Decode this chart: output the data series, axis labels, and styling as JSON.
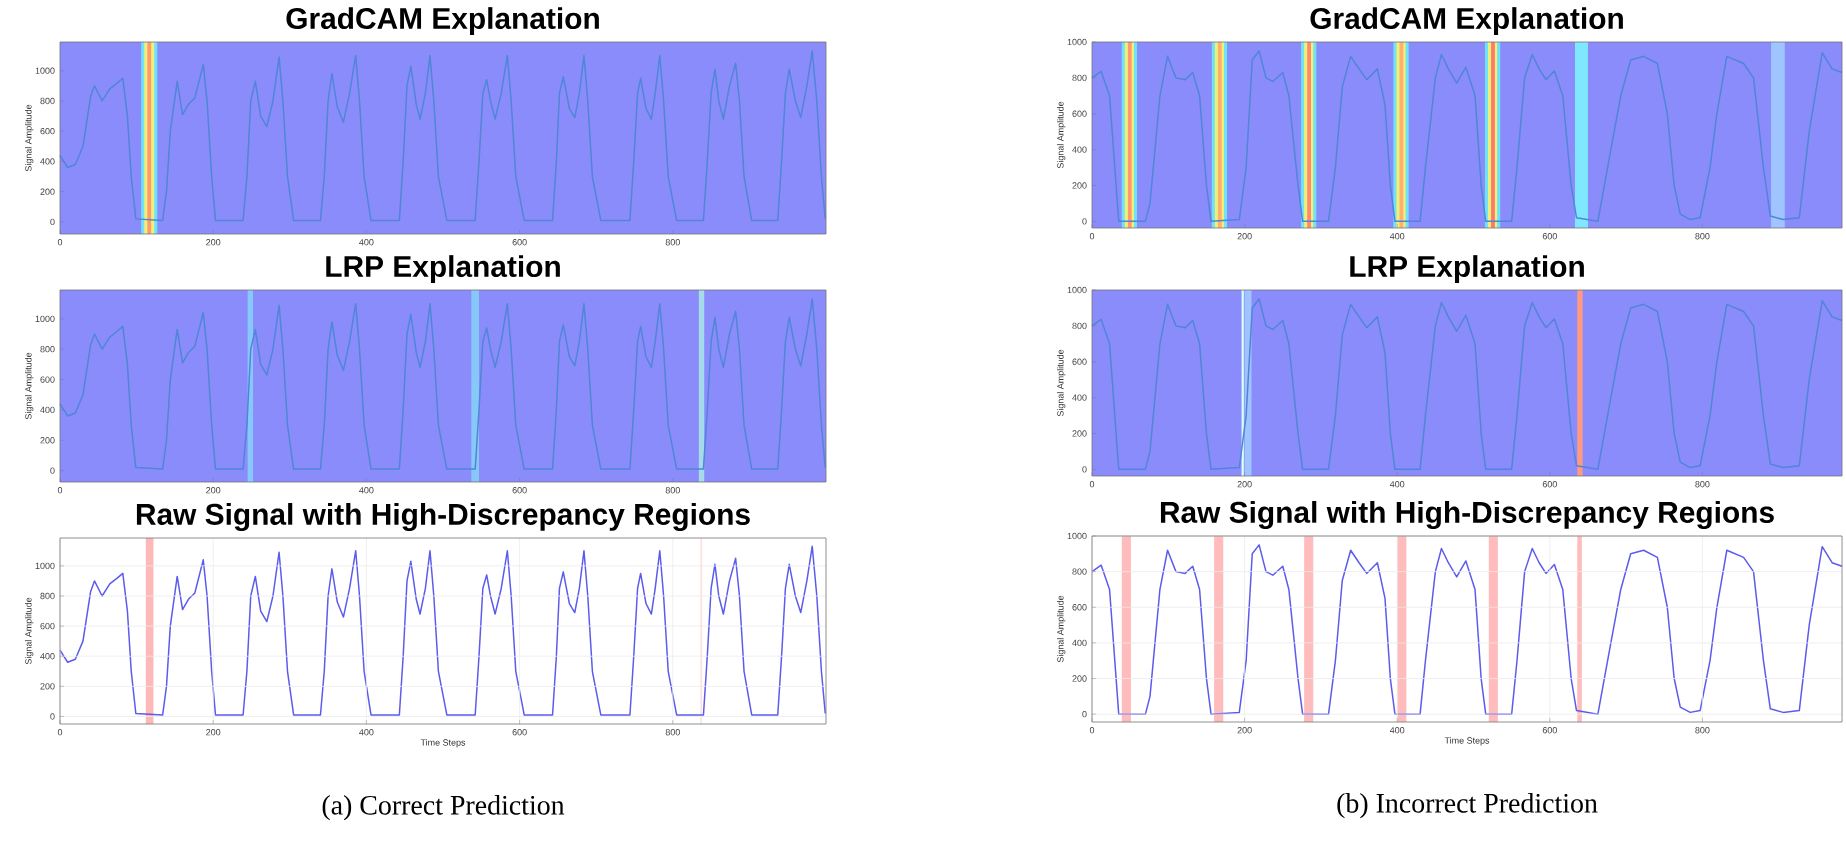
{
  "chart_data": [
    {
      "type": "line",
      "title": "GradCAM Explanation",
      "ylabel": "Signal Amplitude",
      "xlim": [
        0,
        1000
      ],
      "ylim": [
        -80,
        1190
      ],
      "xticks": [
        0,
        200,
        400,
        600,
        800
      ],
      "yticks": [
        0,
        200,
        400,
        600,
        800,
        1000
      ],
      "bands": [
        {
          "axis": "x",
          "from": 0,
          "to": 1000,
          "color": "#8b8cfc"
        },
        {
          "axis": "x",
          "from": 106,
          "to": 127,
          "color": "#6fe3f5"
        },
        {
          "axis": "x",
          "from": 110,
          "to": 123,
          "color": "#eef07a"
        },
        {
          "axis": "x",
          "from": 114,
          "to": 119,
          "color": "#ff9a70"
        }
      ],
      "x": [
        0,
        10,
        20,
        30,
        40,
        45,
        55,
        65,
        75,
        82,
        88,
        93,
        99,
        134,
        139,
        144,
        153,
        160,
        168,
        176,
        187,
        192,
        198,
        203,
        239,
        244,
        249,
        255,
        262,
        270,
        278,
        286,
        291,
        297,
        305,
        340,
        345,
        350,
        355,
        362,
        370,
        378,
        386,
        391,
        397,
        406,
        443,
        448,
        453,
        458,
        465,
        470,
        477,
        483,
        488,
        494,
        505,
        542,
        547,
        552,
        557,
        562,
        568,
        576,
        584,
        589,
        595,
        606,
        643,
        648,
        652,
        657,
        665,
        672,
        678,
        684,
        689,
        695,
        706,
        744,
        749,
        754,
        758,
        765,
        772,
        777,
        783,
        788,
        794,
        805,
        840,
        845,
        850,
        855,
        860,
        866,
        874,
        882,
        887,
        893,
        903,
        937,
        942,
        947,
        952,
        960,
        967,
        975,
        982,
        988,
        994,
        999
      ],
      "series": [
        {
          "color": "#4f86d6",
          "values": [
            440,
            360,
            380,
            500,
            830,
            900,
            800,
            880,
            920,
            950,
            700,
            300,
            20,
            10,
            200,
            600,
            930,
            710,
            780,
            820,
            1040,
            800,
            300,
            10,
            10,
            300,
            800,
            930,
            700,
            630,
            800,
            1090,
            800,
            300,
            10,
            10,
            300,
            800,
            980,
            760,
            660,
            850,
            1100,
            800,
            300,
            10,
            10,
            400,
            900,
            1030,
            780,
            680,
            850,
            1100,
            800,
            300,
            10,
            10,
            400,
            850,
            940,
            800,
            680,
            850,
            1100,
            800,
            300,
            10,
            10,
            400,
            850,
            960,
            750,
            690,
            850,
            1100,
            800,
            300,
            10,
            10,
            400,
            850,
            950,
            750,
            680,
            850,
            1100,
            800,
            300,
            10,
            10,
            400,
            850,
            1010,
            800,
            680,
            900,
            1050,
            800,
            300,
            10,
            10,
            400,
            850,
            1010,
            800,
            690,
            900,
            1130,
            800,
            300,
            20
          ]
        }
      ]
    },
    {
      "type": "line",
      "title": "LRP Explanation",
      "ylabel": "Signal Amplitude",
      "xlim": [
        0,
        1000
      ],
      "ylim": [
        -75,
        1190
      ],
      "xticks": [
        0,
        200,
        400,
        600,
        800
      ],
      "yticks": [
        0,
        200,
        400,
        600,
        800,
        1000
      ],
      "bands": [
        {
          "axis": "x",
          "from": 0,
          "to": 1000,
          "color": "#8b8cfc"
        },
        {
          "axis": "x",
          "from": 245,
          "to": 252,
          "color": "#86c8f8"
        },
        {
          "axis": "x",
          "from": 537,
          "to": 547,
          "color": "#86c8f8"
        },
        {
          "axis": "x",
          "from": 834,
          "to": 841,
          "color": "#a6dcea"
        }
      ],
      "x": [
        0,
        10,
        20,
        30,
        40,
        45,
        55,
        65,
        75,
        82,
        88,
        93,
        99,
        134,
        139,
        144,
        153,
        160,
        168,
        176,
        187,
        192,
        198,
        203,
        239,
        244,
        249,
        255,
        262,
        270,
        278,
        286,
        291,
        297,
        305,
        340,
        345,
        350,
        355,
        362,
        370,
        378,
        386,
        391,
        397,
        406,
        443,
        448,
        453,
        458,
        465,
        470,
        477,
        483,
        488,
        494,
        505,
        542,
        547,
        552,
        557,
        562,
        568,
        576,
        584,
        589,
        595,
        606,
        643,
        648,
        652,
        657,
        665,
        672,
        678,
        684,
        689,
        695,
        706,
        744,
        749,
        754,
        758,
        765,
        772,
        777,
        783,
        788,
        794,
        805,
        840,
        845,
        850,
        855,
        860,
        866,
        874,
        882,
        887,
        893,
        903,
        937,
        942,
        947,
        952,
        960,
        967,
        975,
        982,
        988,
        994,
        999
      ],
      "series": [
        {
          "color": "#4f86d6",
          "values": [
            440,
            360,
            380,
            500,
            830,
            900,
            800,
            880,
            920,
            950,
            700,
            300,
            20,
            10,
            200,
            600,
            930,
            710,
            780,
            820,
            1040,
            800,
            300,
            10,
            10,
            300,
            800,
            930,
            700,
            630,
            800,
            1090,
            800,
            300,
            10,
            10,
            300,
            800,
            980,
            760,
            660,
            850,
            1100,
            800,
            300,
            10,
            10,
            400,
            900,
            1030,
            780,
            680,
            850,
            1100,
            800,
            300,
            10,
            10,
            400,
            850,
            940,
            800,
            680,
            850,
            1100,
            800,
            300,
            10,
            10,
            400,
            850,
            960,
            750,
            690,
            850,
            1100,
            800,
            300,
            10,
            10,
            400,
            850,
            950,
            750,
            680,
            850,
            1100,
            800,
            300,
            10,
            10,
            400,
            850,
            1010,
            800,
            680,
            900,
            1050,
            800,
            300,
            10,
            10,
            400,
            850,
            1010,
            800,
            690,
            900,
            1130,
            800,
            300,
            20
          ]
        }
      ]
    },
    {
      "type": "line",
      "title": "Raw Signal with High-Discrepancy Regions",
      "ylabel": "Signal Amplitude",
      "xlabel": "Time Steps",
      "xlim": [
        0,
        1000
      ],
      "ylim": [
        -50,
        1185
      ],
      "xticks": [
        0,
        200,
        400,
        600,
        800
      ],
      "yticks": [
        0,
        200,
        400,
        600,
        800,
        1000
      ],
      "grid": true,
      "annotations": [
        "(a) Correct Prediction"
      ],
      "bands": [
        {
          "axis": "x",
          "from": 112,
          "to": 122,
          "color": "#ffb8b8"
        },
        {
          "axis": "x",
          "from": 836,
          "to": 838,
          "color": "#ffdede"
        }
      ],
      "x": [
        0,
        10,
        20,
        30,
        40,
        45,
        55,
        65,
        75,
        82,
        88,
        93,
        99,
        134,
        139,
        144,
        153,
        160,
        168,
        176,
        187,
        192,
        198,
        203,
        239,
        244,
        249,
        255,
        262,
        270,
        278,
        286,
        291,
        297,
        305,
        340,
        345,
        350,
        355,
        362,
        370,
        378,
        386,
        391,
        397,
        406,
        443,
        448,
        453,
        458,
        465,
        470,
        477,
        483,
        488,
        494,
        505,
        542,
        547,
        552,
        557,
        562,
        568,
        576,
        584,
        589,
        595,
        606,
        643,
        648,
        652,
        657,
        665,
        672,
        678,
        684,
        689,
        695,
        706,
        744,
        749,
        754,
        758,
        765,
        772,
        777,
        783,
        788,
        794,
        805,
        840,
        845,
        850,
        855,
        860,
        866,
        874,
        882,
        887,
        893,
        903,
        937,
        942,
        947,
        952,
        960,
        967,
        975,
        982,
        988,
        994,
        999
      ],
      "series": [
        {
          "color": "#5b5bee",
          "values": [
            440,
            360,
            380,
            500,
            830,
            900,
            800,
            880,
            920,
            950,
            700,
            300,
            20,
            10,
            200,
            600,
            930,
            710,
            780,
            820,
            1040,
            800,
            300,
            10,
            10,
            300,
            800,
            930,
            700,
            630,
            800,
            1090,
            800,
            300,
            10,
            10,
            300,
            800,
            980,
            760,
            660,
            850,
            1100,
            800,
            300,
            10,
            10,
            400,
            900,
            1030,
            780,
            680,
            850,
            1100,
            800,
            300,
            10,
            10,
            400,
            850,
            940,
            800,
            680,
            850,
            1100,
            800,
            300,
            10,
            10,
            400,
            850,
            960,
            750,
            690,
            850,
            1100,
            800,
            300,
            10,
            10,
            400,
            850,
            950,
            750,
            680,
            850,
            1100,
            800,
            300,
            10,
            10,
            400,
            850,
            1010,
            800,
            680,
            900,
            1050,
            800,
            300,
            10,
            10,
            400,
            850,
            1010,
            800,
            690,
            900,
            1130,
            800,
            300,
            20
          ]
        }
      ]
    },
    {
      "type": "line",
      "title": "GradCAM Explanation",
      "ylabel": "Signal Amplitude",
      "xlim": [
        0,
        983
      ],
      "ylim": [
        -37,
        1000
      ],
      "xticks": [
        0,
        200,
        400,
        600,
        800
      ],
      "yticks": [
        0,
        200,
        400,
        600,
        800,
        1000
      ],
      "bands": [
        {
          "axis": "x",
          "from": 0,
          "to": 983,
          "color": "#8b8cfc"
        },
        {
          "axis": "x",
          "from": 39,
          "to": 59,
          "color": "#6fe3f5"
        },
        {
          "axis": "x",
          "from": 43,
          "to": 55,
          "color": "#eef07a"
        },
        {
          "axis": "x",
          "from": 47,
          "to": 52,
          "color": "#ff9a70"
        },
        {
          "axis": "x",
          "from": 157,
          "to": 177,
          "color": "#6fe3f5"
        },
        {
          "axis": "x",
          "from": 161,
          "to": 173,
          "color": "#eef07a"
        },
        {
          "axis": "x",
          "from": 165,
          "to": 170,
          "color": "#ffb070"
        },
        {
          "axis": "x",
          "from": 274,
          "to": 294,
          "color": "#6fe3f5"
        },
        {
          "axis": "x",
          "from": 278,
          "to": 290,
          "color": "#eef07a"
        },
        {
          "axis": "x",
          "from": 282,
          "to": 287,
          "color": "#ff8a70"
        },
        {
          "axis": "x",
          "from": 395,
          "to": 415,
          "color": "#6fe3f5"
        },
        {
          "axis": "x",
          "from": 399,
          "to": 411,
          "color": "#eef07a"
        },
        {
          "axis": "x",
          "from": 403,
          "to": 408,
          "color": "#ffb070"
        },
        {
          "axis": "x",
          "from": 515,
          "to": 535,
          "color": "#6fe3f5"
        },
        {
          "axis": "x",
          "from": 519,
          "to": 531,
          "color": "#eef07a"
        },
        {
          "axis": "x",
          "from": 523,
          "to": 528,
          "color": "#ff7a6a"
        },
        {
          "axis": "x",
          "from": 633,
          "to": 650,
          "color": "#7fe8ff"
        },
        {
          "axis": "x",
          "from": 890,
          "to": 908,
          "color": "#a0c4ff"
        }
      ],
      "x": [
        0,
        12,
        23,
        35,
        70,
        76,
        89,
        99,
        110,
        122,
        132,
        141,
        150,
        156,
        193,
        202,
        210,
        219,
        228,
        237,
        250,
        258,
        270,
        276,
        310,
        319,
        328,
        339,
        350,
        360,
        374,
        384,
        391,
        397,
        430,
        437,
        450,
        458,
        467,
        478,
        490,
        502,
        510,
        516,
        550,
        557,
        567,
        577,
        586,
        595,
        606,
        617,
        628,
        635,
        663,
        680,
        693,
        706,
        723,
        741,
        754,
        763,
        771,
        784,
        797,
        810,
        819,
        832,
        854,
        867,
        880,
        889,
        906,
        927,
        940,
        957,
        970,
        983
      ],
      "series": [
        {
          "color": "#4f86d6",
          "values": [
            800,
            836,
            700,
            0,
            0,
            100,
            700,
            920,
            800,
            790,
            830,
            700,
            200,
            0,
            10,
            300,
            900,
            950,
            800,
            780,
            830,
            700,
            200,
            0,
            0,
            300,
            750,
            920,
            850,
            790,
            850,
            650,
            200,
            0,
            0,
            300,
            800,
            930,
            850,
            770,
            860,
            700,
            200,
            0,
            0,
            300,
            800,
            930,
            850,
            790,
            840,
            700,
            200,
            20,
            0,
            400,
            700,
            900,
            920,
            880,
            600,
            200,
            40,
            10,
            20,
            300,
            600,
            920,
            880,
            800,
            300,
            30,
            10,
            20,
            500,
            940,
            850,
            830
          ]
        }
      ]
    },
    {
      "type": "line",
      "title": "LRP Explanation",
      "ylabel": "Signal Amplitude",
      "xlim": [
        0,
        983
      ],
      "ylim": [
        -37,
        1000
      ],
      "xticks": [
        0,
        200,
        400,
        600,
        800
      ],
      "yticks": [
        0,
        200,
        400,
        600,
        800,
        1000
      ],
      "bands": [
        {
          "axis": "x",
          "from": 0,
          "to": 983,
          "color": "#8b8cfc"
        },
        {
          "axis": "x",
          "from": 196,
          "to": 199,
          "color": "#d8fff4"
        },
        {
          "axis": "x",
          "from": 200,
          "to": 209,
          "color": "#a0c4ff"
        },
        {
          "axis": "x",
          "from": 636,
          "to": 643,
          "color": "#ff9a80"
        }
      ],
      "x": [
        0,
        12,
        23,
        35,
        70,
        76,
        89,
        99,
        110,
        122,
        132,
        141,
        150,
        156,
        193,
        202,
        210,
        219,
        228,
        237,
        250,
        258,
        270,
        276,
        310,
        319,
        328,
        339,
        350,
        360,
        374,
        384,
        391,
        397,
        430,
        437,
        450,
        458,
        467,
        478,
        490,
        502,
        510,
        516,
        550,
        557,
        567,
        577,
        586,
        595,
        606,
        617,
        628,
        635,
        663,
        680,
        693,
        706,
        723,
        741,
        754,
        763,
        771,
        784,
        797,
        810,
        819,
        832,
        854,
        867,
        880,
        889,
        906,
        927,
        940,
        957,
        970,
        983
      ],
      "series": [
        {
          "color": "#4f86d6",
          "values": [
            800,
            836,
            700,
            0,
            0,
            100,
            700,
            920,
            800,
            790,
            830,
            700,
            200,
            0,
            10,
            300,
            900,
            950,
            800,
            780,
            830,
            700,
            200,
            0,
            0,
            300,
            750,
            920,
            850,
            790,
            850,
            650,
            200,
            0,
            0,
            300,
            800,
            930,
            850,
            770,
            860,
            700,
            200,
            0,
            0,
            300,
            800,
            930,
            850,
            790,
            840,
            700,
            200,
            20,
            0,
            400,
            700,
            900,
            920,
            880,
            600,
            200,
            40,
            10,
            20,
            300,
            600,
            920,
            880,
            800,
            300,
            30,
            10,
            20,
            500,
            940,
            850,
            830
          ]
        }
      ]
    },
    {
      "type": "line",
      "title": "Raw Signal with High-Discrepancy Regions",
      "ylabel": "Signal Amplitude",
      "xlabel": "Time Steps",
      "xlim": [
        0,
        983
      ],
      "ylim": [
        -44,
        1000
      ],
      "xticks": [
        0,
        200,
        400,
        600,
        800
      ],
      "yticks": [
        0,
        200,
        400,
        600,
        800,
        1000
      ],
      "grid": true,
      "annotations": [
        "(b) Incorrect Prediction"
      ],
      "bands": [
        {
          "axis": "x",
          "from": 39,
          "to": 51,
          "color": "#ffbcbc"
        },
        {
          "axis": "x",
          "from": 160,
          "to": 172,
          "color": "#ffbcbc"
        },
        {
          "axis": "x",
          "from": 278,
          "to": 290,
          "color": "#ffbcbc"
        },
        {
          "axis": "x",
          "from": 400,
          "to": 412,
          "color": "#ffbcbc"
        },
        {
          "axis": "x",
          "from": 520,
          "to": 532,
          "color": "#ffbcbc"
        },
        {
          "axis": "x",
          "from": 636,
          "to": 642,
          "color": "#ffbcbc"
        }
      ],
      "x": [
        0,
        12,
        23,
        35,
        70,
        76,
        89,
        99,
        110,
        122,
        132,
        141,
        150,
        156,
        193,
        202,
        210,
        219,
        228,
        237,
        250,
        258,
        270,
        276,
        310,
        319,
        328,
        339,
        350,
        360,
        374,
        384,
        391,
        397,
        430,
        437,
        450,
        458,
        467,
        478,
        490,
        502,
        510,
        516,
        550,
        557,
        567,
        577,
        586,
        595,
        606,
        617,
        628,
        635,
        663,
        680,
        693,
        706,
        723,
        741,
        754,
        763,
        771,
        784,
        797,
        810,
        819,
        832,
        854,
        867,
        880,
        889,
        906,
        927,
        940,
        957,
        970,
        983
      ],
      "series": [
        {
          "color": "#5b5bee",
          "values": [
            800,
            836,
            700,
            0,
            0,
            100,
            700,
            920,
            800,
            790,
            830,
            700,
            200,
            0,
            10,
            300,
            900,
            950,
            800,
            780,
            830,
            700,
            200,
            0,
            0,
            300,
            750,
            920,
            850,
            790,
            850,
            650,
            200,
            0,
            0,
            300,
            800,
            930,
            850,
            770,
            860,
            700,
            200,
            0,
            0,
            300,
            800,
            930,
            850,
            790,
            840,
            700,
            200,
            20,
            0,
            400,
            700,
            900,
            920,
            880,
            600,
            200,
            40,
            10,
            20,
            300,
            600,
            920,
            880,
            800,
            300,
            30,
            10,
            20,
            500,
            940,
            850,
            830
          ]
        }
      ]
    }
  ]
}
